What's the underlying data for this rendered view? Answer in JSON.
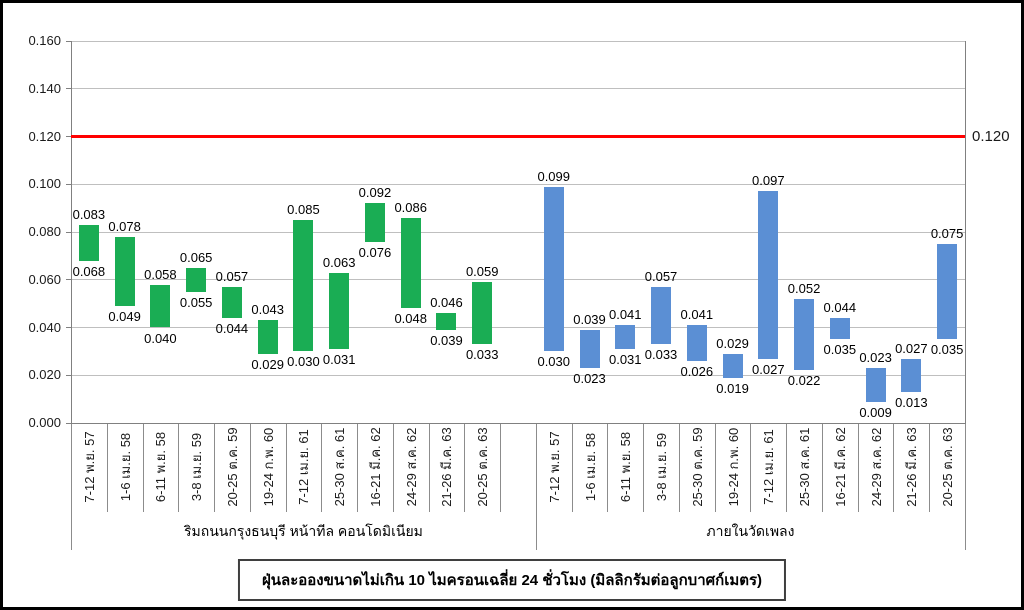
{
  "title": "ฝุ่นละอองขนาดไม่เกิน 10 ไมครอนเฉลี่ย 24 ชั่วโมง (มิลลิกรัมต่อลูกบาศก์เมตร)",
  "threshold": {
    "value": 0.12,
    "label": "0.120",
    "color": "#ff0000"
  },
  "y_axis": {
    "min": 0.0,
    "max": 0.16,
    "step": 0.02,
    "tick_labels": [
      "0.000",
      "0.020",
      "0.040",
      "0.060",
      "0.080",
      "0.100",
      "0.120",
      "0.140",
      "0.160"
    ]
  },
  "chart_data": {
    "type": "bar",
    "subtype": "floating-range-bar",
    "title": "ฝุ่นละอองขนาดไม่เกิน 10 ไมครอนเฉลี่ย 24 ชั่วโมง (มิลลิกรัมต่อลูกบาศก์เมตร)",
    "ylim": [
      0.0,
      0.16
    ],
    "grid": true,
    "legend_position": "none",
    "threshold_line": {
      "value": 0.12,
      "label": "0.120",
      "color": "#ff0000"
    },
    "series": [
      {
        "name": "ริมถนนกรุงธนบุรี หน้าทีล คอนโดมิเนียม",
        "color": "#1aad54",
        "categories": [
          "7-12 พ.ย. 57",
          "1-6 เม.ย. 58",
          "6-11 พ.ย. 58",
          "3-8 เม.ย. 59",
          "20-25 ต.ค. 59",
          "19-24 ก.พ. 60",
          "7-12 เม.ย. 61",
          "25-30 ส.ค. 61",
          "16-21 มี.ค. 62",
          "24-29 ส.ค. 62",
          "21-26 มี.ค. 63",
          "20-25 ต.ค. 63"
        ],
        "ranges": [
          [
            0.068,
            0.083
          ],
          [
            0.049,
            0.078
          ],
          [
            0.04,
            0.058
          ],
          [
            0.055,
            0.065
          ],
          [
            0.044,
            0.057
          ],
          [
            0.029,
            0.043
          ],
          [
            0.03,
            0.085
          ],
          [
            0.031,
            0.063
          ],
          [
            0.076,
            0.092
          ],
          [
            0.048,
            0.086
          ],
          [
            0.039,
            0.046
          ],
          [
            0.033,
            0.059
          ]
        ]
      },
      {
        "name": "ภายในวัดเพลง",
        "color": "#5b8fd4",
        "categories": [
          "7-12 พ.ย. 57",
          "1-6 เม.ย. 58",
          "6-11 พ.ย. 58",
          "3-8 เม.ย. 59",
          "25-30 ต.ค. 59",
          "19-24 ก.พ. 60",
          "7-12 เม.ย. 61",
          "25-30 ส.ค. 61",
          "16-21 มี.ค. 62",
          "24-29 ส.ค. 62",
          "21-26 มี.ค. 63",
          "20-25 ต.ค. 63"
        ],
        "ranges": [
          [
            0.03,
            0.099
          ],
          [
            0.023,
            0.039
          ],
          [
            0.031,
            0.041
          ],
          [
            0.033,
            0.057
          ],
          [
            0.026,
            0.041
          ],
          [
            0.019,
            0.029
          ],
          [
            0.027,
            0.097
          ],
          [
            0.022,
            0.052
          ],
          [
            0.035,
            0.044
          ],
          [
            0.009,
            0.023
          ],
          [
            0.013,
            0.027
          ],
          [
            0.035,
            0.075
          ]
        ]
      }
    ]
  }
}
